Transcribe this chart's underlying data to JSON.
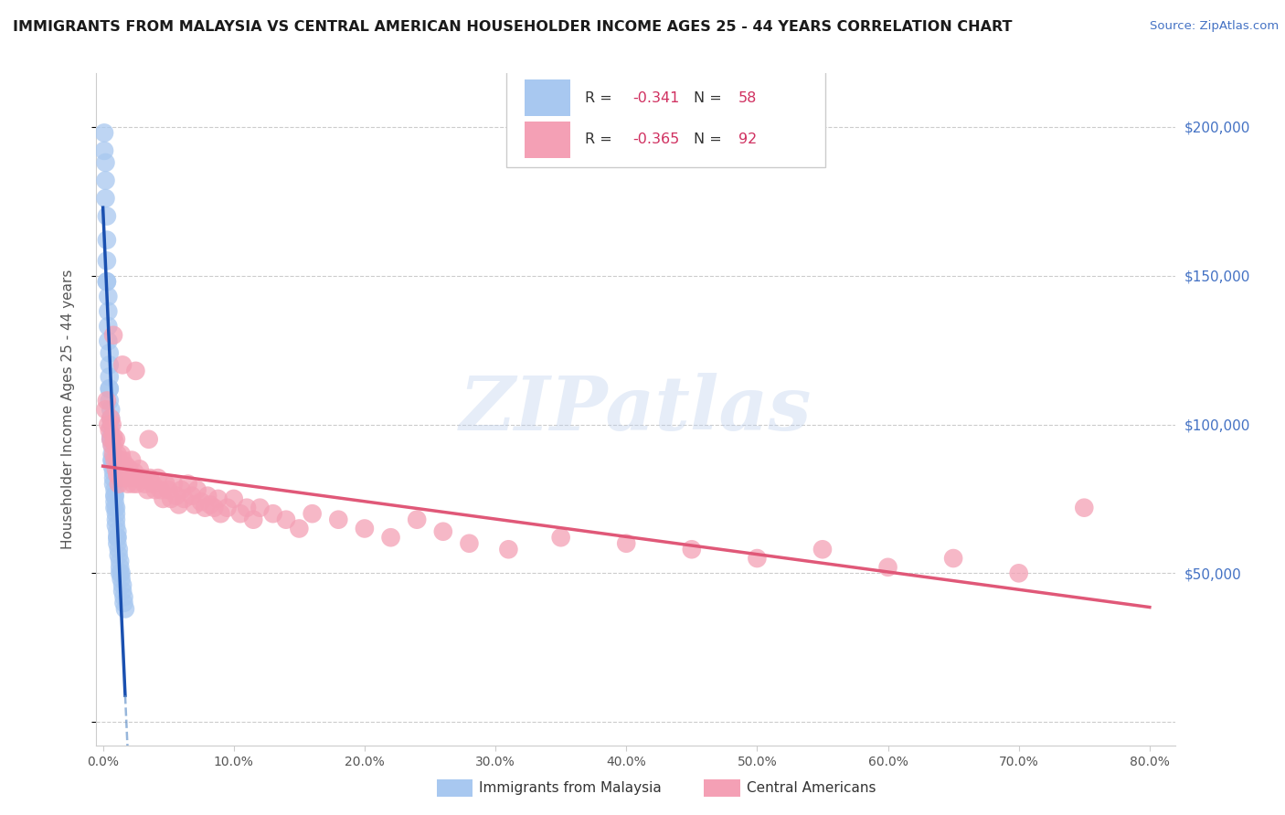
{
  "title": "IMMIGRANTS FROM MALAYSIA VS CENTRAL AMERICAN HOUSEHOLDER INCOME AGES 25 - 44 YEARS CORRELATION CHART",
  "source": "Source: ZipAtlas.com",
  "ylabel": "Householder Income Ages 25 - 44 years",
  "xlabel_ticks": [
    "0.0%",
    "10.0%",
    "20.0%",
    "30.0%",
    "40.0%",
    "50.0%",
    "60.0%",
    "70.0%",
    "80.0%"
  ],
  "xlabel_vals": [
    0,
    0.1,
    0.2,
    0.3,
    0.4,
    0.5,
    0.6,
    0.7,
    0.8
  ],
  "ytick_vals": [
    0,
    50000,
    100000,
    150000,
    200000
  ],
  "ytick_labels": [
    "",
    "$50,000",
    "$100,000",
    "$150,000",
    "$200,000"
  ],
  "xlim": [
    -0.005,
    0.82
  ],
  "ylim": [
    -8000,
    218000
  ],
  "legend_r_malaysia": "-0.341",
  "legend_n_malaysia": "58",
  "legend_r_central": "-0.365",
  "legend_n_central": "92",
  "malaysia_color": "#a8c8f0",
  "central_color": "#f4a0b5",
  "malaysia_line_color": "#1a50b0",
  "central_line_color": "#e05878",
  "watermark_text": "ZIPatlas",
  "malaysia_x": [
    0.001,
    0.001,
    0.002,
    0.002,
    0.002,
    0.003,
    0.003,
    0.003,
    0.003,
    0.004,
    0.004,
    0.004,
    0.004,
    0.005,
    0.005,
    0.005,
    0.005,
    0.005,
    0.006,
    0.006,
    0.006,
    0.006,
    0.007,
    0.007,
    0.007,
    0.007,
    0.008,
    0.008,
    0.008,
    0.009,
    0.009,
    0.009,
    0.01,
    0.01,
    0.01,
    0.01,
    0.011,
    0.011,
    0.011,
    0.012,
    0.012,
    0.013,
    0.013,
    0.014,
    0.014,
    0.015,
    0.015,
    0.016,
    0.016,
    0.017,
    0.003,
    0.005,
    0.007,
    0.009,
    0.011,
    0.013,
    0.006,
    0.009
  ],
  "malaysia_y": [
    198000,
    192000,
    188000,
    182000,
    176000,
    170000,
    162000,
    155000,
    148000,
    143000,
    138000,
    133000,
    128000,
    124000,
    120000,
    116000,
    112000,
    108000,
    105000,
    102000,
    99000,
    96000,
    93000,
    90000,
    88000,
    86000,
    84000,
    82000,
    80000,
    78000,
    76000,
    74000,
    72000,
    70000,
    68000,
    66000,
    64000,
    62000,
    60000,
    58000,
    56000,
    54000,
    52000,
    50000,
    48000,
    46000,
    44000,
    42000,
    40000,
    38000,
    148000,
    112000,
    88000,
    76000,
    62000,
    50000,
    95000,
    72000
  ],
  "central_x": [
    0.002,
    0.003,
    0.004,
    0.005,
    0.006,
    0.006,
    0.007,
    0.007,
    0.008,
    0.008,
    0.009,
    0.009,
    0.01,
    0.01,
    0.011,
    0.011,
    0.012,
    0.012,
    0.013,
    0.013,
    0.014,
    0.015,
    0.016,
    0.017,
    0.018,
    0.019,
    0.02,
    0.021,
    0.022,
    0.023,
    0.024,
    0.025,
    0.026,
    0.028,
    0.03,
    0.032,
    0.034,
    0.036,
    0.038,
    0.04,
    0.042,
    0.044,
    0.046,
    0.048,
    0.05,
    0.052,
    0.054,
    0.056,
    0.058,
    0.06,
    0.062,
    0.065,
    0.068,
    0.07,
    0.072,
    0.075,
    0.078,
    0.08,
    0.082,
    0.085,
    0.088,
    0.09,
    0.095,
    0.1,
    0.105,
    0.11,
    0.115,
    0.12,
    0.13,
    0.14,
    0.15,
    0.16,
    0.18,
    0.2,
    0.22,
    0.24,
    0.26,
    0.28,
    0.31,
    0.35,
    0.4,
    0.45,
    0.5,
    0.55,
    0.6,
    0.65,
    0.7,
    0.75,
    0.008,
    0.015,
    0.025,
    0.035
  ],
  "central_y": [
    105000,
    108000,
    100000,
    98000,
    102000,
    95000,
    100000,
    93000,
    96000,
    90000,
    94000,
    88000,
    95000,
    85000,
    90000,
    83000,
    88000,
    80000,
    85000,
    82000,
    90000,
    88000,
    85000,
    82000,
    86000,
    80000,
    85000,
    82000,
    88000,
    80000,
    84000,
    82000,
    80000,
    85000,
    82000,
    80000,
    78000,
    82000,
    80000,
    78000,
    82000,
    78000,
    75000,
    80000,
    78000,
    75000,
    80000,
    76000,
    73000,
    78000,
    75000,
    80000,
    76000,
    73000,
    78000,
    74000,
    72000,
    76000,
    73000,
    72000,
    75000,
    70000,
    72000,
    75000,
    70000,
    72000,
    68000,
    72000,
    70000,
    68000,
    65000,
    70000,
    68000,
    65000,
    62000,
    68000,
    64000,
    60000,
    58000,
    62000,
    60000,
    58000,
    55000,
    58000,
    52000,
    55000,
    50000,
    72000,
    130000,
    120000,
    118000,
    95000
  ]
}
